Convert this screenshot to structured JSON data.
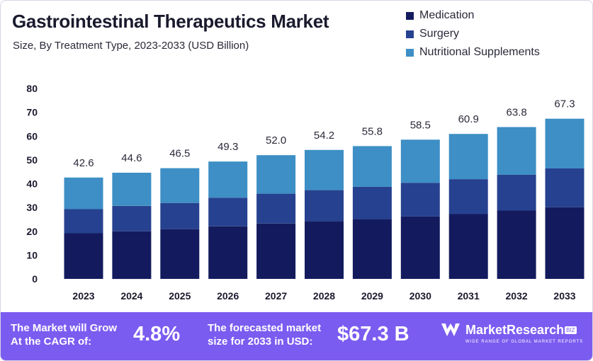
{
  "header": {
    "title": "Gastrointestinal Therapeutics Market",
    "subtitle": "Size, By Treatment Type, 2023-2033 (USD Billion)"
  },
  "colors": {
    "medication": "#131b5e",
    "surgery": "#26418f",
    "nutritional": "#3d8fc5",
    "footer_bg": "#7b5cf0"
  },
  "chart_data": {
    "type": "bar",
    "stacked": true,
    "categories": [
      "2023",
      "2024",
      "2025",
      "2026",
      "2027",
      "2028",
      "2029",
      "2030",
      "2031",
      "2032",
      "2033"
    ],
    "series": [
      {
        "name": "Medication",
        "values": [
          19.2,
          20.0,
          20.9,
          22.1,
          23.3,
          24.2,
          25.0,
          26.2,
          27.2,
          28.7,
          30.1
        ]
      },
      {
        "name": "Surgery",
        "values": [
          10.1,
          10.7,
          11.0,
          12.0,
          12.5,
          13.1,
          13.7,
          14.2,
          14.7,
          15.1,
          16.3
        ]
      },
      {
        "name": "Nutritional Supplements",
        "values": [
          13.3,
          13.9,
          14.6,
          15.2,
          16.2,
          16.9,
          17.1,
          18.1,
          19.0,
          20.0,
          20.9
        ]
      }
    ],
    "totals": [
      "42.6",
      "44.6",
      "46.5",
      "49.3",
      "52.0",
      "54.2",
      "55.8",
      "58.5",
      "60.9",
      "63.8",
      "67.3"
    ],
    "yticks": [
      "0",
      "10",
      "20",
      "30",
      "40",
      "50",
      "60",
      "70",
      "80"
    ],
    "ylim": [
      0,
      80
    ],
    "grid": false,
    "legend_position": "top-right"
  },
  "footer": {
    "cagr_label_line1": "The Market will Grow",
    "cagr_label_line2": "At the CAGR of:",
    "cagr_value": "4.8%",
    "forecast_label_line1": "The forecasted market",
    "forecast_label_line2": "size for 2033 in USD:",
    "forecast_value": "$67.3 B",
    "logo_text": "MarketResearch",
    "logo_badge": "BIZ",
    "logo_tagline": "WIDE RANGE OF GLOBAL MARKET REPORTS"
  }
}
